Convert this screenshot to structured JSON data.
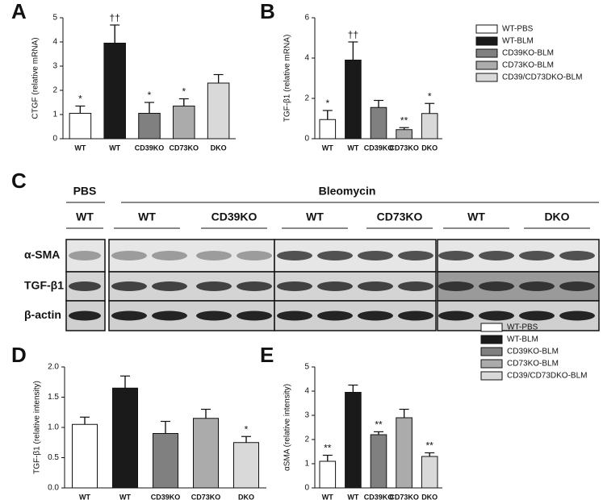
{
  "chart_data": [
    {
      "type": "bar",
      "panel": "A",
      "ylabel": "CTGF (relative mRNA)",
      "categories": [
        "WT",
        "WT",
        "CD39KO",
        "CD73KO",
        "DKO"
      ],
      "values": [
        1.05,
        3.95,
        1.05,
        1.35,
        2.3
      ],
      "errors": [
        0.3,
        0.75,
        0.45,
        0.3,
        0.35
      ],
      "annotations": [
        "*",
        "††",
        "*",
        "*",
        null
      ],
      "colors": [
        "#ffffff",
        "#1a1a1a",
        "#808080",
        "#ababab",
        "#d9d9d9"
      ],
      "ylim": [
        0,
        5
      ],
      "yticks": [
        0,
        1,
        2,
        3,
        4,
        5
      ]
    },
    {
      "type": "bar",
      "panel": "B",
      "ylabel": "TGF-β1 (relative mRNA)",
      "categories": [
        "WT",
        "WT",
        "CD39KO",
        "CD73KO",
        "DKO"
      ],
      "values": [
        0.95,
        3.9,
        1.55,
        0.45,
        1.25
      ],
      "errors": [
        0.45,
        0.9,
        0.35,
        0.1,
        0.5
      ],
      "annotations": [
        "*",
        "††",
        null,
        "**",
        "*"
      ],
      "colors": [
        "#ffffff",
        "#1a1a1a",
        "#808080",
        "#ababab",
        "#d9d9d9"
      ],
      "ylim": [
        0,
        6
      ],
      "yticks": [
        0,
        2,
        4,
        6
      ],
      "legend": [
        "WT-PBS",
        "WT-BLM",
        "CD39KO-BLM",
        "CD73KO-BLM",
        "CD39/CD73DKO-BLM"
      ]
    },
    {
      "type": "bar",
      "panel": "D",
      "ylabel": "TGF-β1 (relative intensity)",
      "categories": [
        "WT",
        "WT",
        "CD39KO",
        "CD73KO",
        "DKO"
      ],
      "values": [
        1.05,
        1.65,
        0.9,
        1.15,
        0.75
      ],
      "errors": [
        0.12,
        0.2,
        0.2,
        0.15,
        0.1
      ],
      "annotations": [
        null,
        null,
        null,
        null,
        "*"
      ],
      "colors": [
        "#ffffff",
        "#1a1a1a",
        "#808080",
        "#ababab",
        "#d9d9d9"
      ],
      "ylim": [
        0,
        2
      ],
      "yticks": [
        {
          "value": 0,
          "label": "0.0"
        },
        0.5,
        {
          "value": 1,
          "label": "1.0"
        },
        1.5,
        {
          "value": 2,
          "label": "2.0"
        }
      ]
    },
    {
      "type": "bar",
      "panel": "E",
      "ylabel": "αSMA (relative intensity)",
      "categories": [
        "WT",
        "WT",
        "CD39KO",
        "CD73KO",
        "DKO"
      ],
      "values": [
        1.1,
        3.95,
        2.2,
        2.9,
        1.3
      ],
      "errors": [
        0.25,
        0.3,
        0.12,
        0.35,
        0.15
      ],
      "annotations": [
        "**",
        null,
        "**",
        null,
        "**"
      ],
      "colors": [
        "#ffffff",
        "#1a1a1a",
        "#808080",
        "#ababab",
        "#d9d9d9"
      ],
      "ylim": [
        0,
        5
      ],
      "yticks": [
        0,
        1,
        2,
        3,
        4,
        5
      ],
      "legend": [
        "WT-PBS",
        "WT-BLM",
        "CD39KO-BLM",
        "CD73KO-BLM",
        "CD39/CD73DKO-BLM"
      ]
    }
  ],
  "blot": {
    "panel": "C",
    "pbs": "PBS",
    "bleomycin": "Bleomycin",
    "groups": [
      "WT",
      "WT",
      "CD39KO",
      "WT",
      "CD73KO",
      "WT",
      "DKO"
    ],
    "rows": [
      "α-SMA",
      "TGF-β1",
      "β-actin"
    ]
  }
}
